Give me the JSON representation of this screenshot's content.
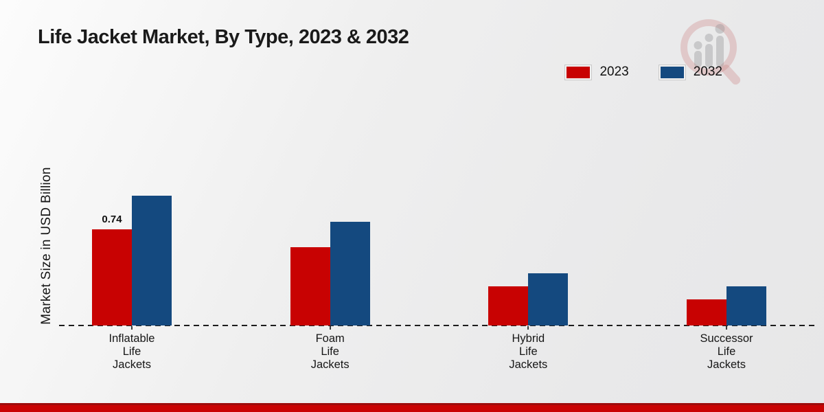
{
  "page": {
    "title": "Life Jacket Market, By Type, 2023 & 2032"
  },
  "chart_data": {
    "type": "bar",
    "title": "Life Jacket Market, By Type, 2023 & 2032",
    "xlabel": "",
    "ylabel": "Market Size in USD Billion",
    "categories": [
      "Inflatable Life Jackets",
      "Foam Life Jackets",
      "Hybrid Life Jackets",
      "Successor Life Jackets"
    ],
    "series": [
      {
        "name": "2023",
        "color": "#c80202",
        "values": [
          0.74,
          0.6,
          0.3,
          0.2
        ],
        "value_labels": [
          "0.74",
          "",
          "",
          ""
        ]
      },
      {
        "name": "2032",
        "color": "#14497f",
        "values": [
          1.0,
          0.8,
          0.4,
          0.3
        ],
        "value_labels": [
          "",
          "",
          "",
          ""
        ]
      }
    ],
    "ylim": [
      0,
      1.1
    ],
    "grid": false,
    "legend_position": "top-right",
    "baseline_style": "dashed-black",
    "data_label_shown": "0.74"
  },
  "legend": {
    "items": [
      {
        "label": "2023",
        "color": "#c80202"
      },
      {
        "label": "2032",
        "color": "#14497f"
      }
    ]
  },
  "watermark": {
    "icon": "magnifier-bar-chart-logo"
  },
  "footer": {
    "accent_color": "#c90303"
  }
}
